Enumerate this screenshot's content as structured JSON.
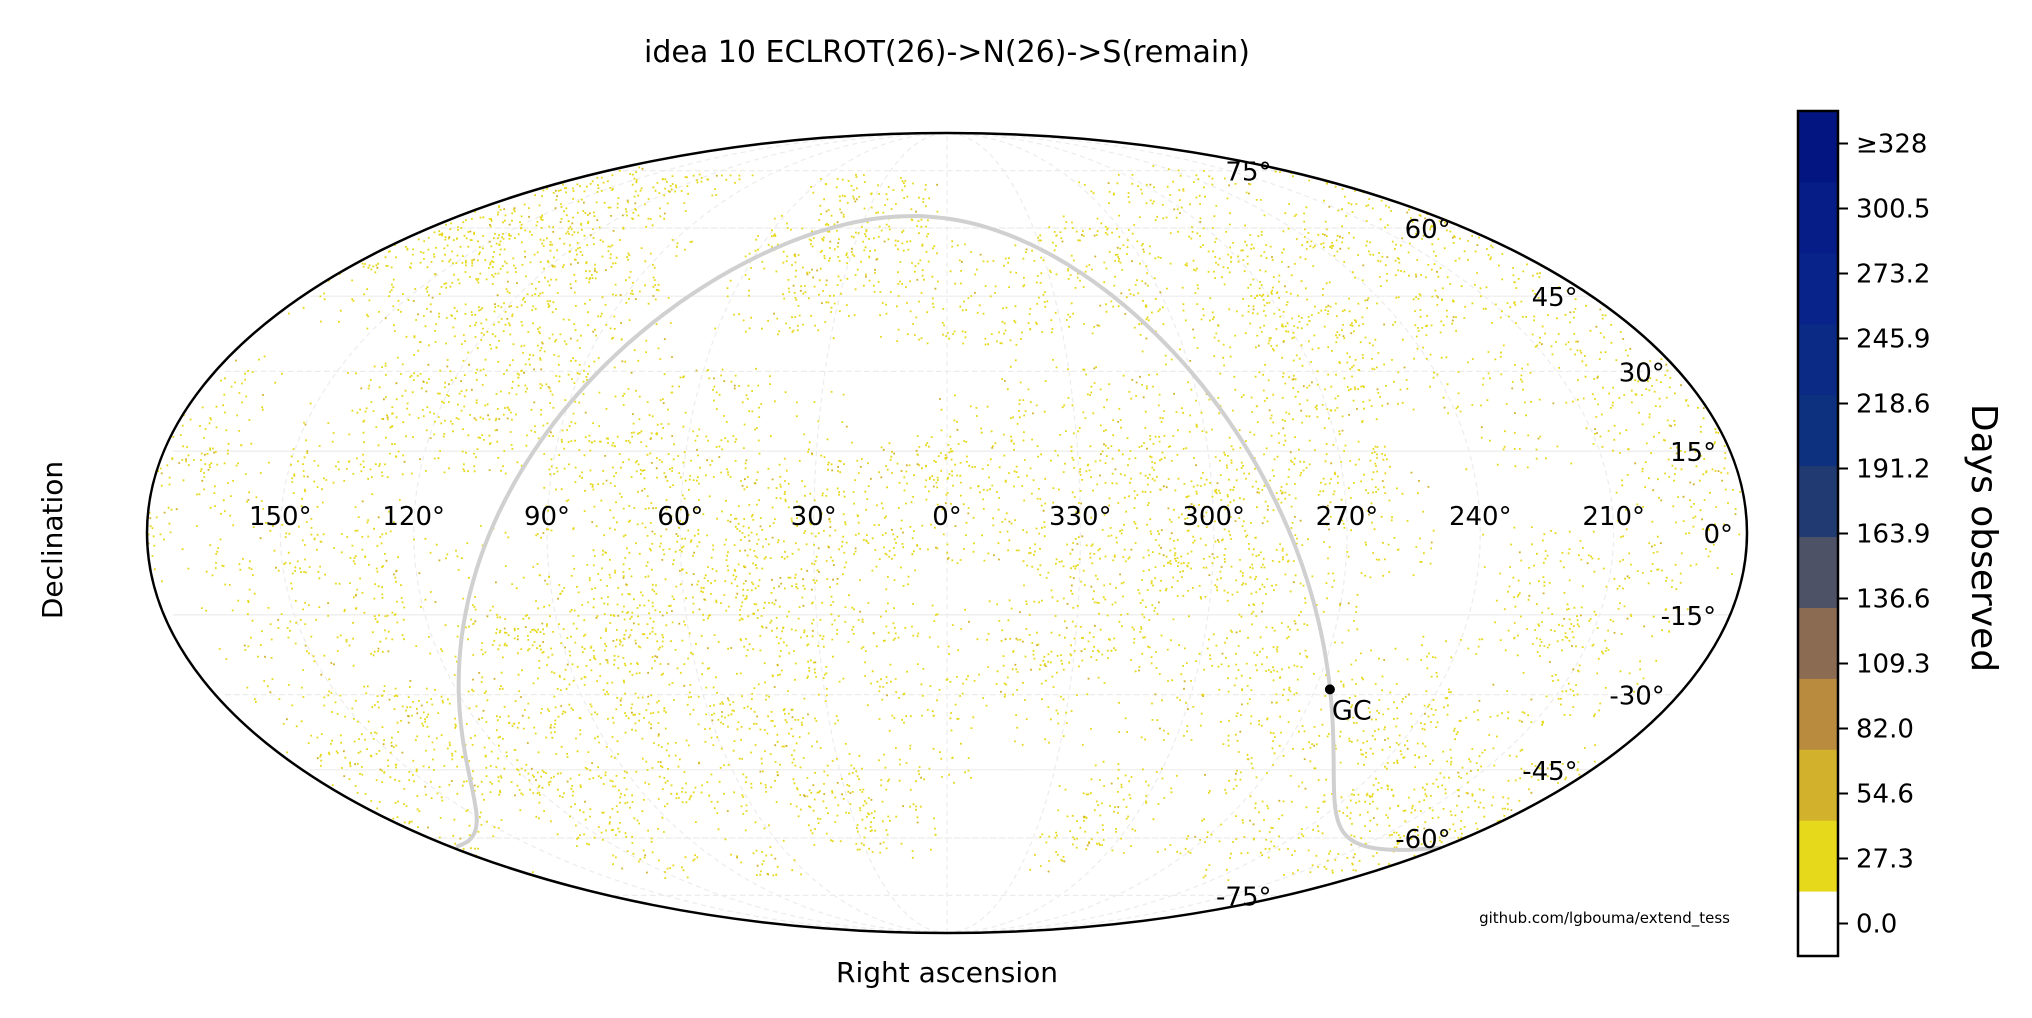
{
  "chart_data": {
    "type": "scatter",
    "projection": "mollweide",
    "title": "idea 10 ECLROT(26)->N(26)->S(remain)",
    "xlabel": "Right ascension",
    "ylabel": "Declination",
    "x_tick_labels": [
      "150°",
      "120°",
      "90°",
      "60°",
      "30°",
      "0°",
      "330°",
      "300°",
      "270°",
      "240°",
      "210°"
    ],
    "y_tick_labels": [
      "75°",
      "60°",
      "45°",
      "30°",
      "15°",
      "0°",
      "-15°",
      "-30°",
      "-45°",
      "-60°",
      "-75°"
    ],
    "grid": true,
    "annotation": {
      "label": "GC",
      "ra": 266.4,
      "dec": -29.0
    },
    "credit": "github.com/lgbouma/extend_tess",
    "colorbar": {
      "label": "Days observed",
      "position": "right",
      "ticks": [
        "0.0",
        "27.3",
        "54.6",
        "82.0",
        "109.3",
        "136.6",
        "163.9",
        "191.2",
        "218.6",
        "245.9",
        "273.2",
        "300.5",
        "≥328"
      ],
      "bins": [
        {
          "range": [
            0.0,
            27.3
          ],
          "color": "#ffffff"
        },
        {
          "range": [
            27.3,
            54.6
          ],
          "color": "#e6d81b"
        },
        {
          "range": [
            54.6,
            82.0
          ],
          "color": "#d2b22c"
        },
        {
          "range": [
            82.0,
            109.3
          ],
          "color": "#b98b3f"
        },
        {
          "range": [
            109.3,
            136.6
          ],
          "color": "#8b6c52"
        },
        {
          "range": [
            136.6,
            163.9
          ],
          "color": "#4e5266"
        },
        {
          "range": [
            163.9,
            191.2
          ],
          "color": "#213a72"
        },
        {
          "range": [
            191.2,
            218.6
          ],
          "color": "#0e317f"
        },
        {
          "range": [
            218.6,
            245.9
          ],
          "color": "#0a2a85"
        },
        {
          "range": [
            245.9,
            273.2
          ],
          "color": "#08238a"
        },
        {
          "range": [
            273.2,
            300.5
          ],
          "color": "#061c86"
        },
        {
          "range": [
            300.5,
            328.0
          ],
          "color": "#031580"
        }
      ]
    },
    "colors": {
      "single_coverage": "#e6d81b",
      "double_coverage": "#d2b22c",
      "galactic_plane": "#d0d0d0",
      "frame": "#000000"
    }
  }
}
